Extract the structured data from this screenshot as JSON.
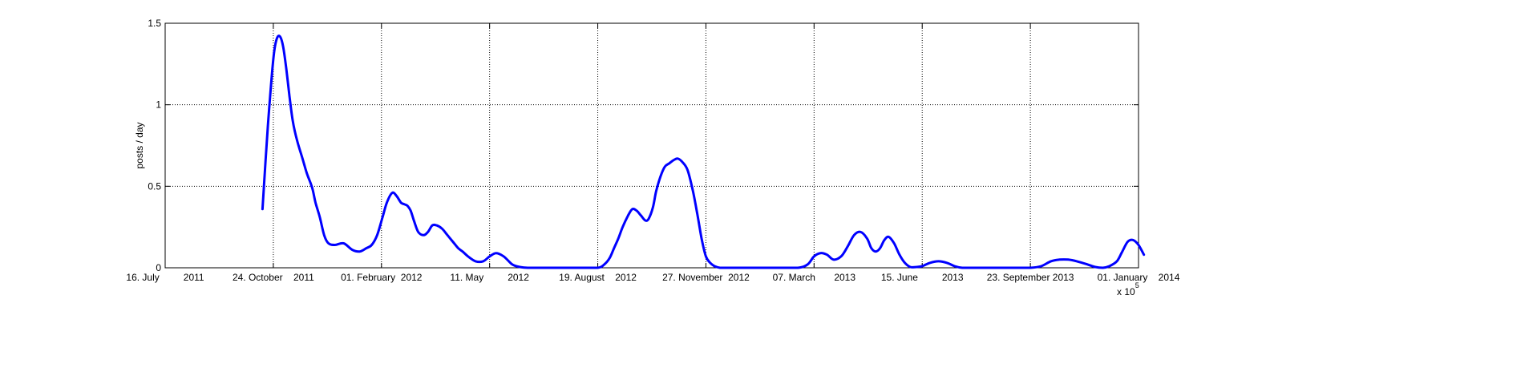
{
  "chart_data": {
    "type": "line",
    "title": "",
    "xlabel": "",
    "ylabel": "posts / day",
    "ylim": [
      0,
      1.5
    ],
    "grid": true,
    "yticks": [
      0,
      0.5,
      1,
      1.5
    ],
    "ytick_labels": [
      "0",
      "0.5",
      "1",
      "1.5"
    ],
    "xlim": [
      "2011-07-16",
      "2014-01-01"
    ],
    "xticks": [
      "2011-07-16",
      "2011-10-24",
      "2012-02-01",
      "2012-05-11",
      "2012-08-19",
      "2012-11-27",
      "2013-03-07",
      "2013-06-15",
      "2013-09-23",
      "2014-01-01"
    ],
    "xtick_labels": [
      "16. July         2011",
      "24. October    2011",
      "01. February  2012",
      "11. May         2012",
      "19. August    2012",
      "27. November  2012",
      "07. March       2013",
      "15. June         2013",
      "23. September 2013",
      "01. January    2014"
    ],
    "x_exponent_label": "x 10",
    "x_exponent_power": "5",
    "line_color": "#0000ff",
    "series": [
      {
        "x": [
          "2011-10-14",
          "2011-10-19",
          "2011-10-24",
          "2011-10-27",
          "2011-10-30",
          "2011-11-02",
          "2011-11-05",
          "2011-11-08",
          "2011-11-11",
          "2011-11-15",
          "2011-11-20",
          "2011-11-24",
          "2011-11-29",
          "2011-12-02",
          "2011-12-06",
          "2011-12-10",
          "2011-12-14",
          "2011-12-20",
          "2011-12-28",
          "2012-01-05",
          "2012-01-12",
          "2012-01-18",
          "2012-01-23",
          "2012-01-28",
          "2012-02-02",
          "2012-02-06",
          "2012-02-11",
          "2012-02-15",
          "2012-02-19",
          "2012-02-22",
          "2012-02-25",
          "2012-02-28",
          "2012-03-02",
          "2012-03-06",
          "2012-03-11",
          "2012-03-15",
          "2012-03-19",
          "2012-03-23",
          "2012-03-28",
          "2012-04-02",
          "2012-04-07",
          "2012-04-12",
          "2012-04-16",
          "2012-04-21",
          "2012-04-28",
          "2012-05-05",
          "2012-05-11",
          "2012-05-17",
          "2012-05-24",
          "2012-06-01",
          "2012-06-08",
          "2012-06-15",
          "2012-06-21",
          "2012-06-27",
          "2012-07-03",
          "2012-07-10",
          "2012-07-18",
          "2012-07-25",
          "2012-08-05",
          "2012-08-19",
          "2012-08-25",
          "2012-08-30",
          "2012-09-03",
          "2012-09-07",
          "2012-09-11",
          "2012-09-16",
          "2012-09-20",
          "2012-09-24",
          "2012-09-28",
          "2012-10-02",
          "2012-10-05",
          "2012-10-09",
          "2012-10-12",
          "2012-10-16",
          "2012-10-20",
          "2012-10-24",
          "2012-10-28",
          "2012-11-01",
          "2012-11-05",
          "2012-11-10",
          "2012-11-15",
          "2012-11-19",
          "2012-11-23",
          "2012-11-27",
          "2012-12-01",
          "2012-12-05",
          "2012-12-10",
          "2012-12-14",
          "2012-12-18",
          "2012-12-22",
          "2012-12-28",
          "2013-01-10",
          "2013-02-01",
          "2013-02-20",
          "2013-03-01",
          "2013-03-07",
          "2013-03-13",
          "2013-03-19",
          "2013-03-25",
          "2013-04-01",
          "2013-04-07",
          "2013-04-13",
          "2013-04-19",
          "2013-04-25",
          "2013-04-29",
          "2013-05-03",
          "2013-05-07",
          "2013-05-11",
          "2013-05-15",
          "2013-05-20",
          "2013-05-25",
          "2013-05-30",
          "2013-06-04",
          "2013-06-10",
          "2013-06-15",
          "2013-06-22",
          "2013-06-30",
          "2013-07-08",
          "2013-07-15",
          "2013-07-22",
          "2013-08-01",
          "2013-08-20",
          "2013-09-10",
          "2013-09-23",
          "2013-10-03",
          "2013-10-12",
          "2013-10-20",
          "2013-10-28",
          "2013-11-05",
          "2013-11-15",
          "2013-11-22",
          "2013-11-29",
          "2013-12-05",
          "2013-12-12",
          "2013-12-17",
          "2013-12-22",
          "2013-12-27",
          "2014-01-01",
          "2014-01-06"
        ],
        "values": [
          0.36,
          0.87,
          1.28,
          1.4,
          1.42,
          1.36,
          1.22,
          1.05,
          0.9,
          0.78,
          0.67,
          0.58,
          0.49,
          0.4,
          0.31,
          0.2,
          0.15,
          0.14,
          0.15,
          0.11,
          0.1,
          0.12,
          0.14,
          0.2,
          0.31,
          0.4,
          0.46,
          0.44,
          0.4,
          0.39,
          0.38,
          0.35,
          0.29,
          0.22,
          0.2,
          0.22,
          0.26,
          0.26,
          0.24,
          0.2,
          0.16,
          0.12,
          0.1,
          0.07,
          0.04,
          0.04,
          0.07,
          0.09,
          0.07,
          0.02,
          0.005,
          0,
          0,
          0,
          0,
          0,
          0,
          0,
          0,
          0,
          0.02,
          0.06,
          0.12,
          0.18,
          0.25,
          0.32,
          0.36,
          0.35,
          0.32,
          0.29,
          0.3,
          0.37,
          0.47,
          0.56,
          0.62,
          0.64,
          0.66,
          0.67,
          0.65,
          0.6,
          0.47,
          0.33,
          0.18,
          0.07,
          0.03,
          0.01,
          0,
          0,
          0,
          0,
          0,
          0,
          0,
          0,
          0.02,
          0.07,
          0.09,
          0.08,
          0.05,
          0.07,
          0.13,
          0.2,
          0.22,
          0.18,
          0.12,
          0.1,
          0.12,
          0.17,
          0.19,
          0.15,
          0.08,
          0.03,
          0.005,
          0.005,
          0.01,
          0.03,
          0.04,
          0.03,
          0.01,
          0,
          0,
          0,
          0,
          0,
          0.01,
          0.04,
          0.05,
          0.05,
          0.04,
          0.02,
          0.005,
          0,
          0.01,
          0.04,
          0.1,
          0.16,
          0.17,
          0.14,
          0.08
        ]
      }
    ]
  }
}
